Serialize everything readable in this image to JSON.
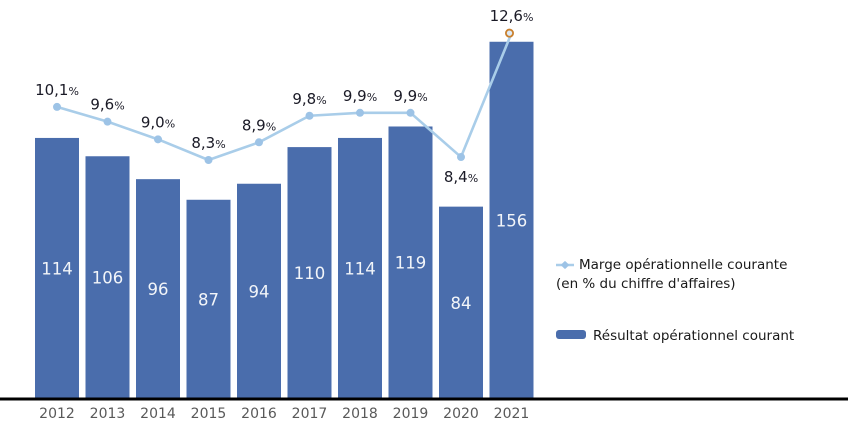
{
  "chart_data": {
    "type": "bar+line",
    "categories": [
      "2012",
      "2013",
      "2014",
      "2015",
      "2016",
      "2017",
      "2018",
      "2019",
      "2020",
      "2021"
    ],
    "series": [
      {
        "name": "Résultat opérationnel courant",
        "type": "bar",
        "values": [
          114,
          106,
          96,
          87,
          94,
          110,
          114,
          119,
          84,
          156
        ],
        "color": "#4a6dac",
        "value_label_color": "#f2f5f9"
      },
      {
        "name": "Marge opérationnelle courante (en % du chiffre d'affaires)",
        "type": "line",
        "values": [
          10.1,
          9.6,
          9.0,
          8.3,
          8.9,
          9.8,
          9.9,
          9.9,
          8.4,
          12.6
        ],
        "unit": "%",
        "decimal_separator": ",",
        "color": "#a9cde9",
        "marker_color": "#9dc3e6",
        "last_marker_stroke": "#c9802e",
        "last_marker_fill": "#dce9f5",
        "label_color": "#1a1a26",
        "label_below_indices": [
          8
        ]
      }
    ],
    "axis": {
      "x_label_color": "#595959",
      "baseline_color": "#000000",
      "grid": false,
      "y_axis_visible": false
    },
    "legend_position": "right"
  },
  "legend": {
    "line_series": {
      "line1": "Marge opérationnelle courante",
      "line2": "(en % du chiffre d'affaires)"
    },
    "bar_series": {
      "label": "Résultat opérationnel courant"
    }
  }
}
